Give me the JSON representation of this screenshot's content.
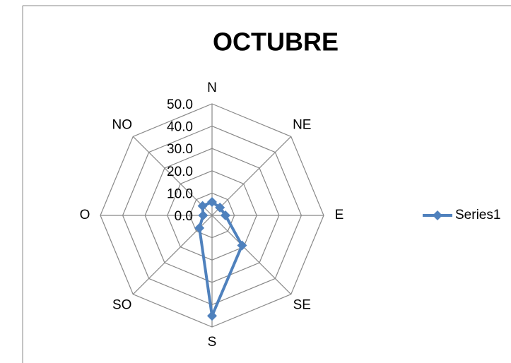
{
  "chart_data": {
    "type": "radar",
    "title": "OCTUBRE",
    "categories": [
      "N",
      "NE",
      "E",
      "SE",
      "S",
      "SO",
      "O",
      "NO"
    ],
    "series": [
      {
        "name": "Series1",
        "color": "#4f81bd",
        "values": [
          6,
          5,
          6,
          19,
          45,
          8,
          4,
          6
        ]
      }
    ],
    "ylim": [
      0,
      50
    ],
    "yticks": [
      {
        "value": 0,
        "label": "0.0"
      },
      {
        "value": 10,
        "label": "10.0"
      },
      {
        "value": 20,
        "label": "20.0"
      },
      {
        "value": 30,
        "label": "30.0"
      },
      {
        "value": 40,
        "label": "40.0"
      },
      {
        "value": 50,
        "label": "50.0"
      }
    ],
    "grid": true,
    "legend": "right"
  }
}
